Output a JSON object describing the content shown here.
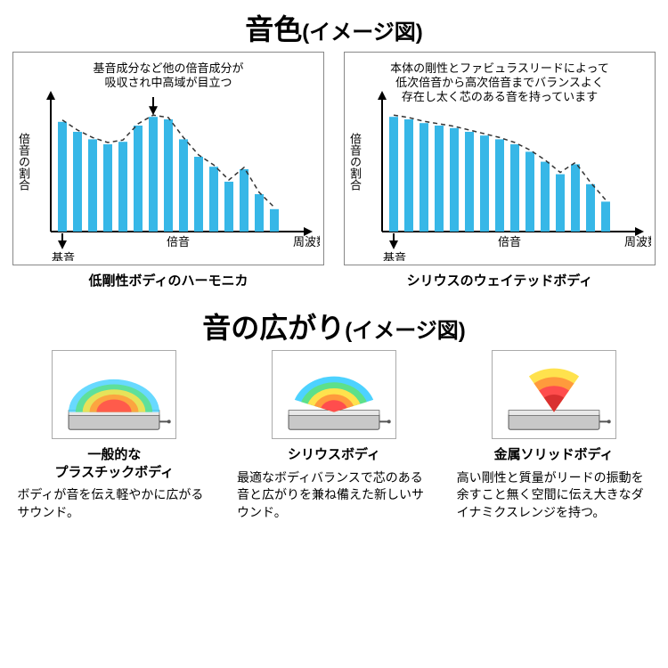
{
  "section1": {
    "title_main": "音色",
    "title_sub": "(イメージ図)",
    "bar_color": "#37b7e7",
    "axis_color": "#000000",
    "envelope_color": "#333333",
    "chart_left": {
      "note": "基音成分など他の倍音成分が\n吸収され中高域が目立つ",
      "ylabel": "倍音の割合",
      "xlabel_right": "周波数",
      "xlabel_center": "倍音",
      "xlabel_left": "基音",
      "bars": [
        88,
        80,
        74,
        70,
        72,
        85,
        92,
        90,
        74,
        60,
        52,
        40,
        50,
        30,
        18
      ],
      "caption": "低剛性ボディのハーモニカ"
    },
    "chart_right": {
      "note": "本体の剛性とファビュラスリードによって\n低次倍音から高次倍音までバランスよく\n存在し太く芯のある音を持っています",
      "ylabel": "倍音の割合",
      "xlabel_right": "周波数",
      "xlabel_center": "倍音",
      "xlabel_left": "基音",
      "bars": [
        92,
        90,
        87,
        85,
        83,
        80,
        77,
        74,
        70,
        64,
        56,
        46,
        54,
        38,
        24
      ],
      "caption": "シリウスのウェイテッドボディ"
    }
  },
  "section2": {
    "title_main": "音の広がり",
    "title_sub": "(イメージ図)",
    "harmonica_body_color": "#c8c8c8",
    "harmonica_top_color": "#e8e8e8",
    "items": [
      {
        "name": "一般的な\nプラスチックボディ",
        "desc": "ボディが音を伝え軽やかに広がるサウンド。",
        "spread_type": "wide-soft",
        "colors": [
          "#4dd2ff",
          "#5de08a",
          "#ffe24d",
          "#ff9a3c",
          "#ff4d4d"
        ]
      },
      {
        "name": "シリウスボディ",
        "desc": "最適なボディバランスで芯のある音と広がりを兼ね備えた新しいサウンド。",
        "spread_type": "medium",
        "colors": [
          "#4dd2ff",
          "#5de08a",
          "#ffe24d",
          "#ff9a3c",
          "#ff4d4d"
        ]
      },
      {
        "name": "金属ソリッドボディ",
        "desc": "高い剛性と質量がリードの振動を余すこと無く空間に伝え大きなダイナミクスレンジを持つ。",
        "spread_type": "narrow-strong",
        "colors": [
          "#ffe24d",
          "#ff9a3c",
          "#ff4d4d",
          "#d93030"
        ]
      }
    ]
  }
}
